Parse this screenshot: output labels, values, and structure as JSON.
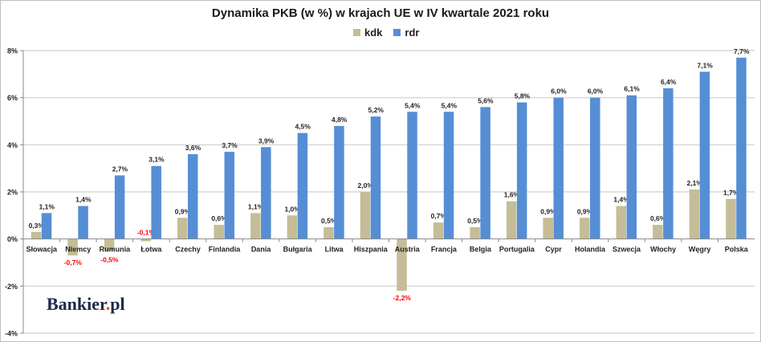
{
  "chart_data": {
    "type": "bar",
    "title": "Dynamika PKB (w %) w krajach UE w IV kwartale 2021 roku",
    "categories": [
      "Słowacja",
      "Niemcy",
      "Rumunia",
      "Łotwa",
      "Czechy",
      "Finlandia",
      "Dania",
      "Bułgaria",
      "Litwa",
      "Hiszpania",
      "Austria",
      "Francja",
      "Belgia",
      "Portugalia",
      "Cypr",
      "Holandia",
      "Szwecja",
      "Włochy",
      "Węgry",
      "Polska"
    ],
    "series": [
      {
        "name": "kdk",
        "color": "#c4bd97",
        "values": [
          0.3,
          -0.7,
          -0.5,
          -0.1,
          0.9,
          0.6,
          1.1,
          1.0,
          0.5,
          2.0,
          -2.2,
          0.7,
          0.5,
          1.6,
          0.9,
          0.9,
          1.4,
          0.6,
          2.1,
          1.7
        ]
      },
      {
        "name": "rdr",
        "color": "#558ed5",
        "values": [
          1.1,
          1.4,
          2.7,
          3.1,
          3.6,
          3.7,
          3.9,
          4.5,
          4.8,
          5.2,
          5.4,
          5.4,
          5.6,
          5.8,
          6.0,
          6.0,
          6.1,
          6.4,
          7.1,
          7.7
        ]
      }
    ],
    "ylim": [
      -4,
      8
    ],
    "yticks": [
      "-4%",
      "-2%",
      "0%",
      "2%",
      "4%",
      "6%",
      "8%"
    ],
    "ytick_values": [
      -4,
      -2,
      0,
      2,
      4,
      6,
      8
    ],
    "negative_label_color": "#ff0000",
    "grid": true,
    "legend": "top-center",
    "xlabel": "",
    "ylabel": ""
  },
  "logo": {
    "text_main": "Bankier",
    "text_dot": ".",
    "text_tld": "pl"
  }
}
